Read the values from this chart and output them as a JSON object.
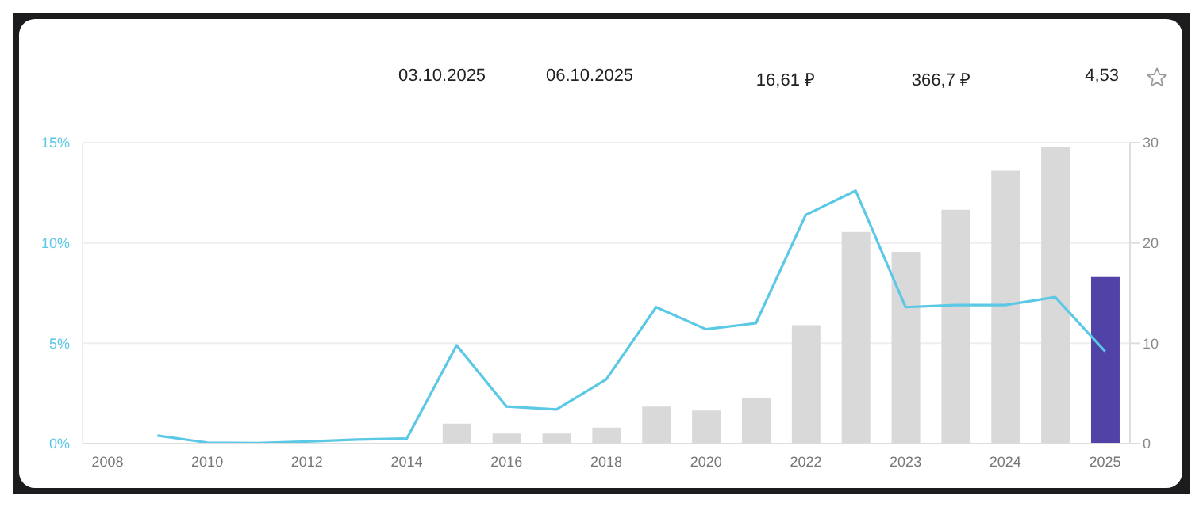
{
  "chart_data": {
    "type": "bar",
    "annotations": [
      "03.10.2025",
      "06.10.2025",
      "16,61 ₽",
      "366,7 ₽",
      "4,53"
    ],
    "categories": [
      "2008",
      null,
      "2010",
      null,
      "2012",
      null,
      "2014",
      null,
      "2016",
      null,
      "2018",
      null,
      "2020",
      null,
      "2022",
      null,
      "2023",
      null,
      "2024",
      null,
      "2025"
    ],
    "series": [
      {
        "axis": "y2",
        "colors": [
          "#d9d9d9",
          "#d9d9d9",
          "#d9d9d9",
          "#d9d9d9",
          "#d9d9d9",
          "#d9d9d9",
          "#d9d9d9",
          "#d9d9d9",
          "#d9d9d9",
          "#d9d9d9",
          "#d9d9d9",
          "#d9d9d9",
          "#d9d9d9",
          "#d9d9d9",
          "#d9d9d9",
          "#d9d9d9",
          "#d9d9d9",
          "#d9d9d9",
          "#d9d9d9",
          "#d9d9d9",
          "#5142a8"
        ],
        "values": [
          null,
          null,
          null,
          null,
          null,
          null,
          null,
          2.0,
          1.0,
          1.0,
          1.6,
          3.7,
          3.3,
          4.5,
          11.8,
          21.1,
          19.1,
          23.3,
          27.2,
          29.6,
          16.6
        ]
      },
      {
        "type": "line",
        "axis": "y",
        "color": "#5bc8e6",
        "values": [
          null,
          0.4,
          0.05,
          0.03,
          0.1,
          0.2,
          0.25,
          4.9,
          1.85,
          1.7,
          3.2,
          6.8,
          5.7,
          6.0,
          11.4,
          12.6,
          6.8,
          6.9,
          6.9,
          7.3,
          4.6
        ]
      }
    ],
    "ylim": [
      0,
      15
    ],
    "yticks": [
      {
        "value": 0,
        "label": "0%"
      },
      {
        "value": 5,
        "label": "5%"
      },
      {
        "value": 10,
        "label": "10%"
      },
      {
        "value": 15,
        "label": "15%"
      }
    ],
    "y2lim": [
      0,
      30
    ],
    "y2ticks": [
      0,
      10,
      20,
      30
    ],
    "grid": "y",
    "legend": false,
    "marker": "none",
    "line_style": "solid"
  }
}
